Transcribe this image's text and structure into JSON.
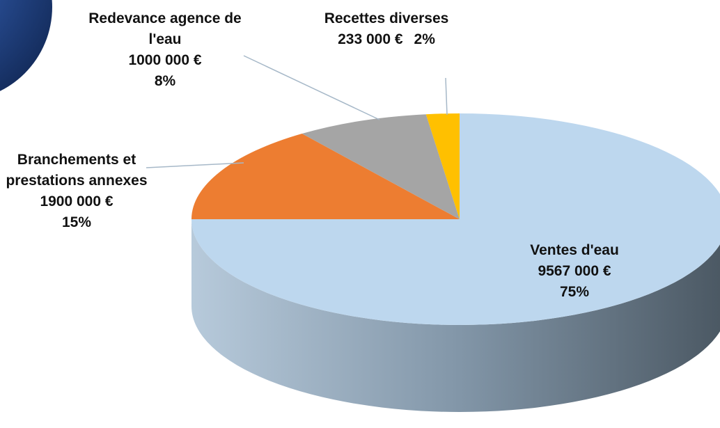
{
  "chart_data": {
    "type": "pie3d",
    "categories": [
      "Ventes d'eau",
      "Branchements et prestations annexes",
      "Redevance agence de l'eau",
      "Recettes diverses"
    ],
    "values": [
      75,
      15,
      8,
      2
    ],
    "value_labels": [
      "75%",
      "15%",
      "8%",
      "2%"
    ],
    "amount_labels": [
      "9567 000 €",
      "1900 000 €",
      "1000 000 €",
      "233 000 €"
    ],
    "colors": [
      "#bdd7ee",
      "#ed7d31",
      "#a5a5a5",
      "#ffc000"
    ]
  }
}
